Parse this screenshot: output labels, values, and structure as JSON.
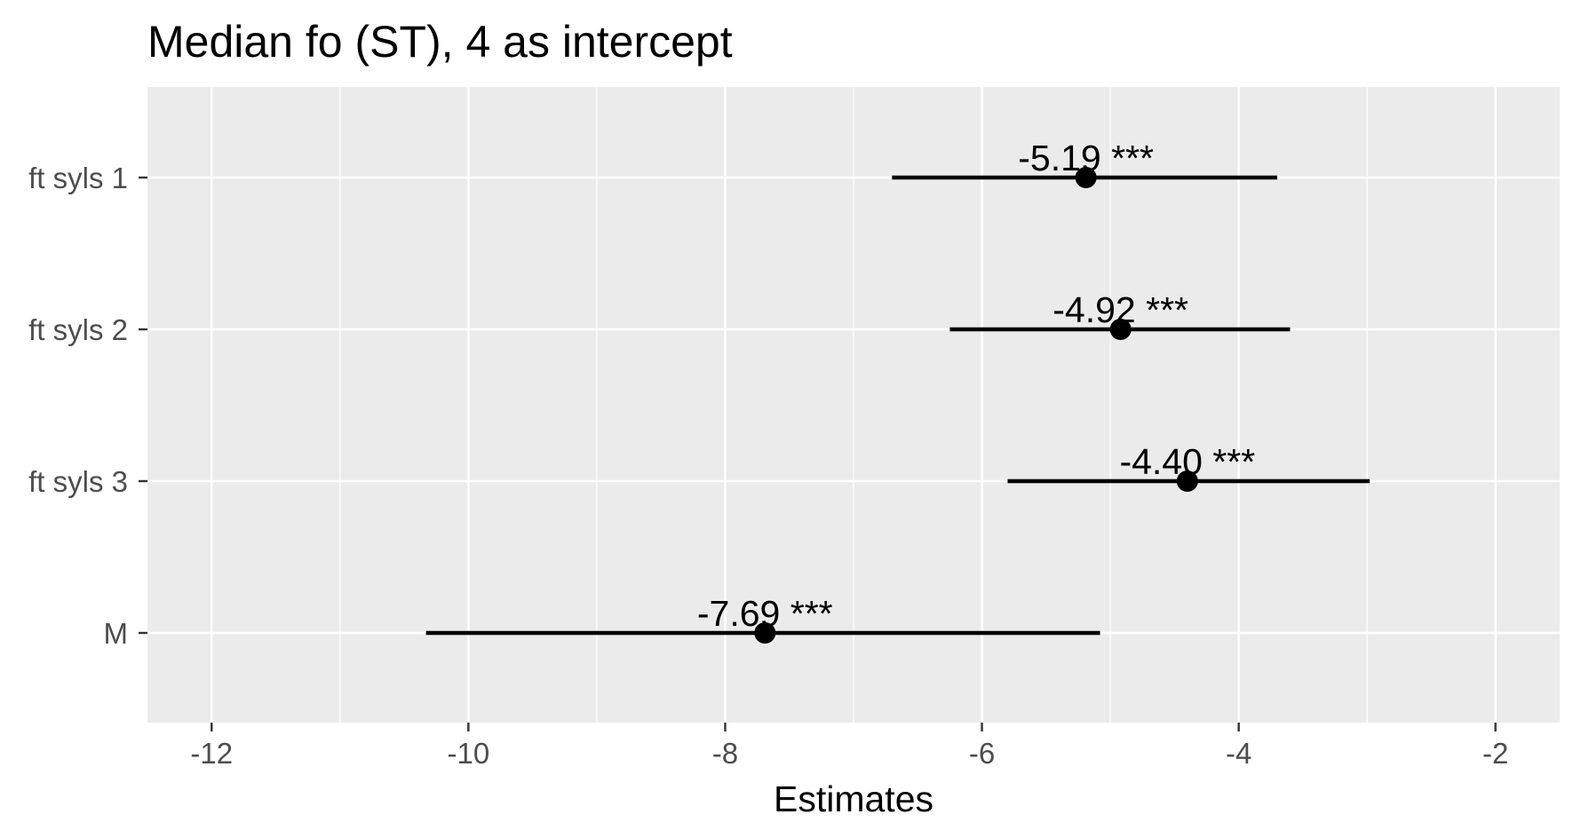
{
  "chart_data": {
    "type": "forest",
    "title": "Median fo (ST), 4 as intercept",
    "xlabel": "Estimates",
    "ylabel": "",
    "xlim": [
      -12.5,
      -1.5
    ],
    "x_ticks": [
      -12,
      -10,
      -8,
      -6,
      -4,
      -2
    ],
    "x_tick_labels": [
      "-12",
      "-10",
      "-8",
      "-6",
      "-4",
      "-2"
    ],
    "x_minor_ticks": [
      -11,
      -9,
      -7,
      -5,
      -3
    ],
    "grid": true,
    "categories": [
      "ft syls 1",
      "ft syls 2",
      "ft syls 3",
      "M"
    ],
    "estimates": [
      -5.19,
      -4.92,
      -4.4,
      -7.69
    ],
    "ci_low": [
      -6.7,
      -6.25,
      -5.8,
      -10.33
    ],
    "ci_high": [
      -3.7,
      -3.6,
      -2.98,
      -5.08
    ],
    "labels": [
      "-5.19 ***",
      "-4.92 ***",
      "-4.40 ***",
      "-7.69 ***"
    ],
    "colors": {
      "panel": "#ebebeb",
      "grid": "#ffffff",
      "marks": "#000000",
      "tick_text": "#4d4d4d"
    }
  }
}
